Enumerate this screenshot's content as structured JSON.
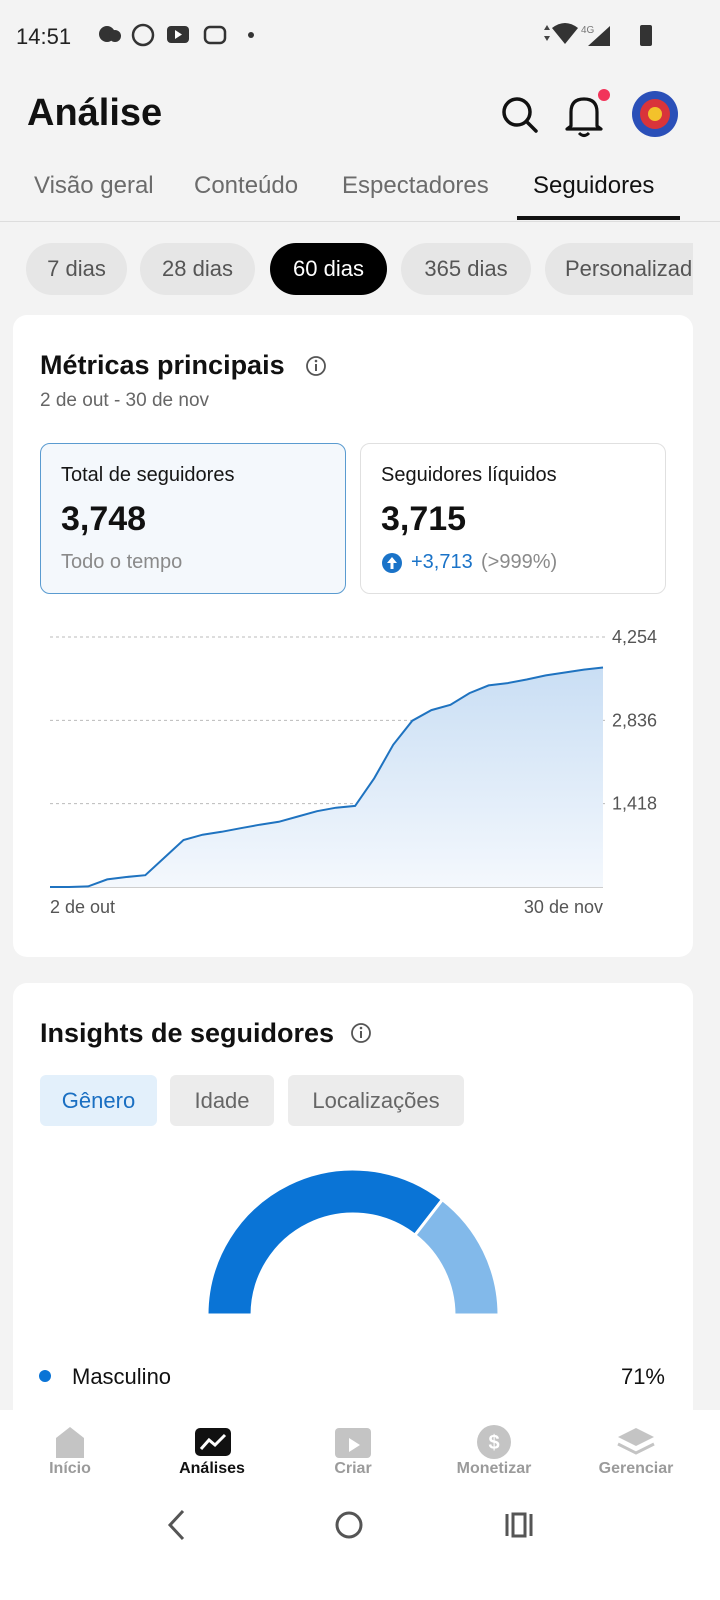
{
  "status_bar": {
    "time": "14:51"
  },
  "header": {
    "title": "Análise"
  },
  "tabs": [
    "Visão geral",
    "Conteúdo",
    "Espectadores",
    "Seguidores"
  ],
  "period_chips": [
    "7 dias",
    "28 dias",
    "60 dias",
    "365 dias",
    "Personalizado"
  ],
  "metrics_card": {
    "title": "Métricas principais",
    "date_range": "2 de out - 30 de nov",
    "metrics": [
      {
        "label": "Total de seguidores",
        "value": "3,748",
        "note": "Todo o tempo"
      },
      {
        "label": "Seguidores líquidos",
        "value": "3,715",
        "change": "+3,713",
        "change_pct": "(>999%)"
      }
    ]
  },
  "follower_chart": {
    "type": "line",
    "values": [
      0,
      0,
      10,
      130,
      170,
      200,
      500,
      800,
      890,
      940,
      1000,
      1060,
      1110,
      1200,
      1290,
      1350,
      1380,
      1850,
      2420,
      2830,
      3010,
      3100,
      3300,
      3430,
      3470,
      3530,
      3600,
      3650,
      3700,
      3735
    ],
    "color": "#1f73c0",
    "ylim": [
      0,
      4254
    ],
    "yticks": [
      {
        "value": 1418,
        "label": "1,418"
      },
      {
        "value": 2836,
        "label": "2,836"
      },
      {
        "value": 4254,
        "label": "4,254"
      }
    ],
    "grid": true,
    "x_start_label": "2 de out",
    "x_end_label": "30 de nov"
  },
  "insights_card": {
    "title": "Insights de seguidores",
    "filters": [
      "Gênero",
      "Idade",
      "Localizações"
    ],
    "gender_chart": {
      "type": "donut",
      "categories": [
        "Masculino",
        null
      ],
      "values": [
        71,
        29
      ],
      "value_labels": [
        "71%",
        null
      ],
      "colors": [
        "#0a74d6",
        "#82b9ea"
      ]
    }
  },
  "bottom_nav": [
    "Início",
    "Análises",
    "Criar",
    "Monetizar",
    "Gerenciar"
  ]
}
